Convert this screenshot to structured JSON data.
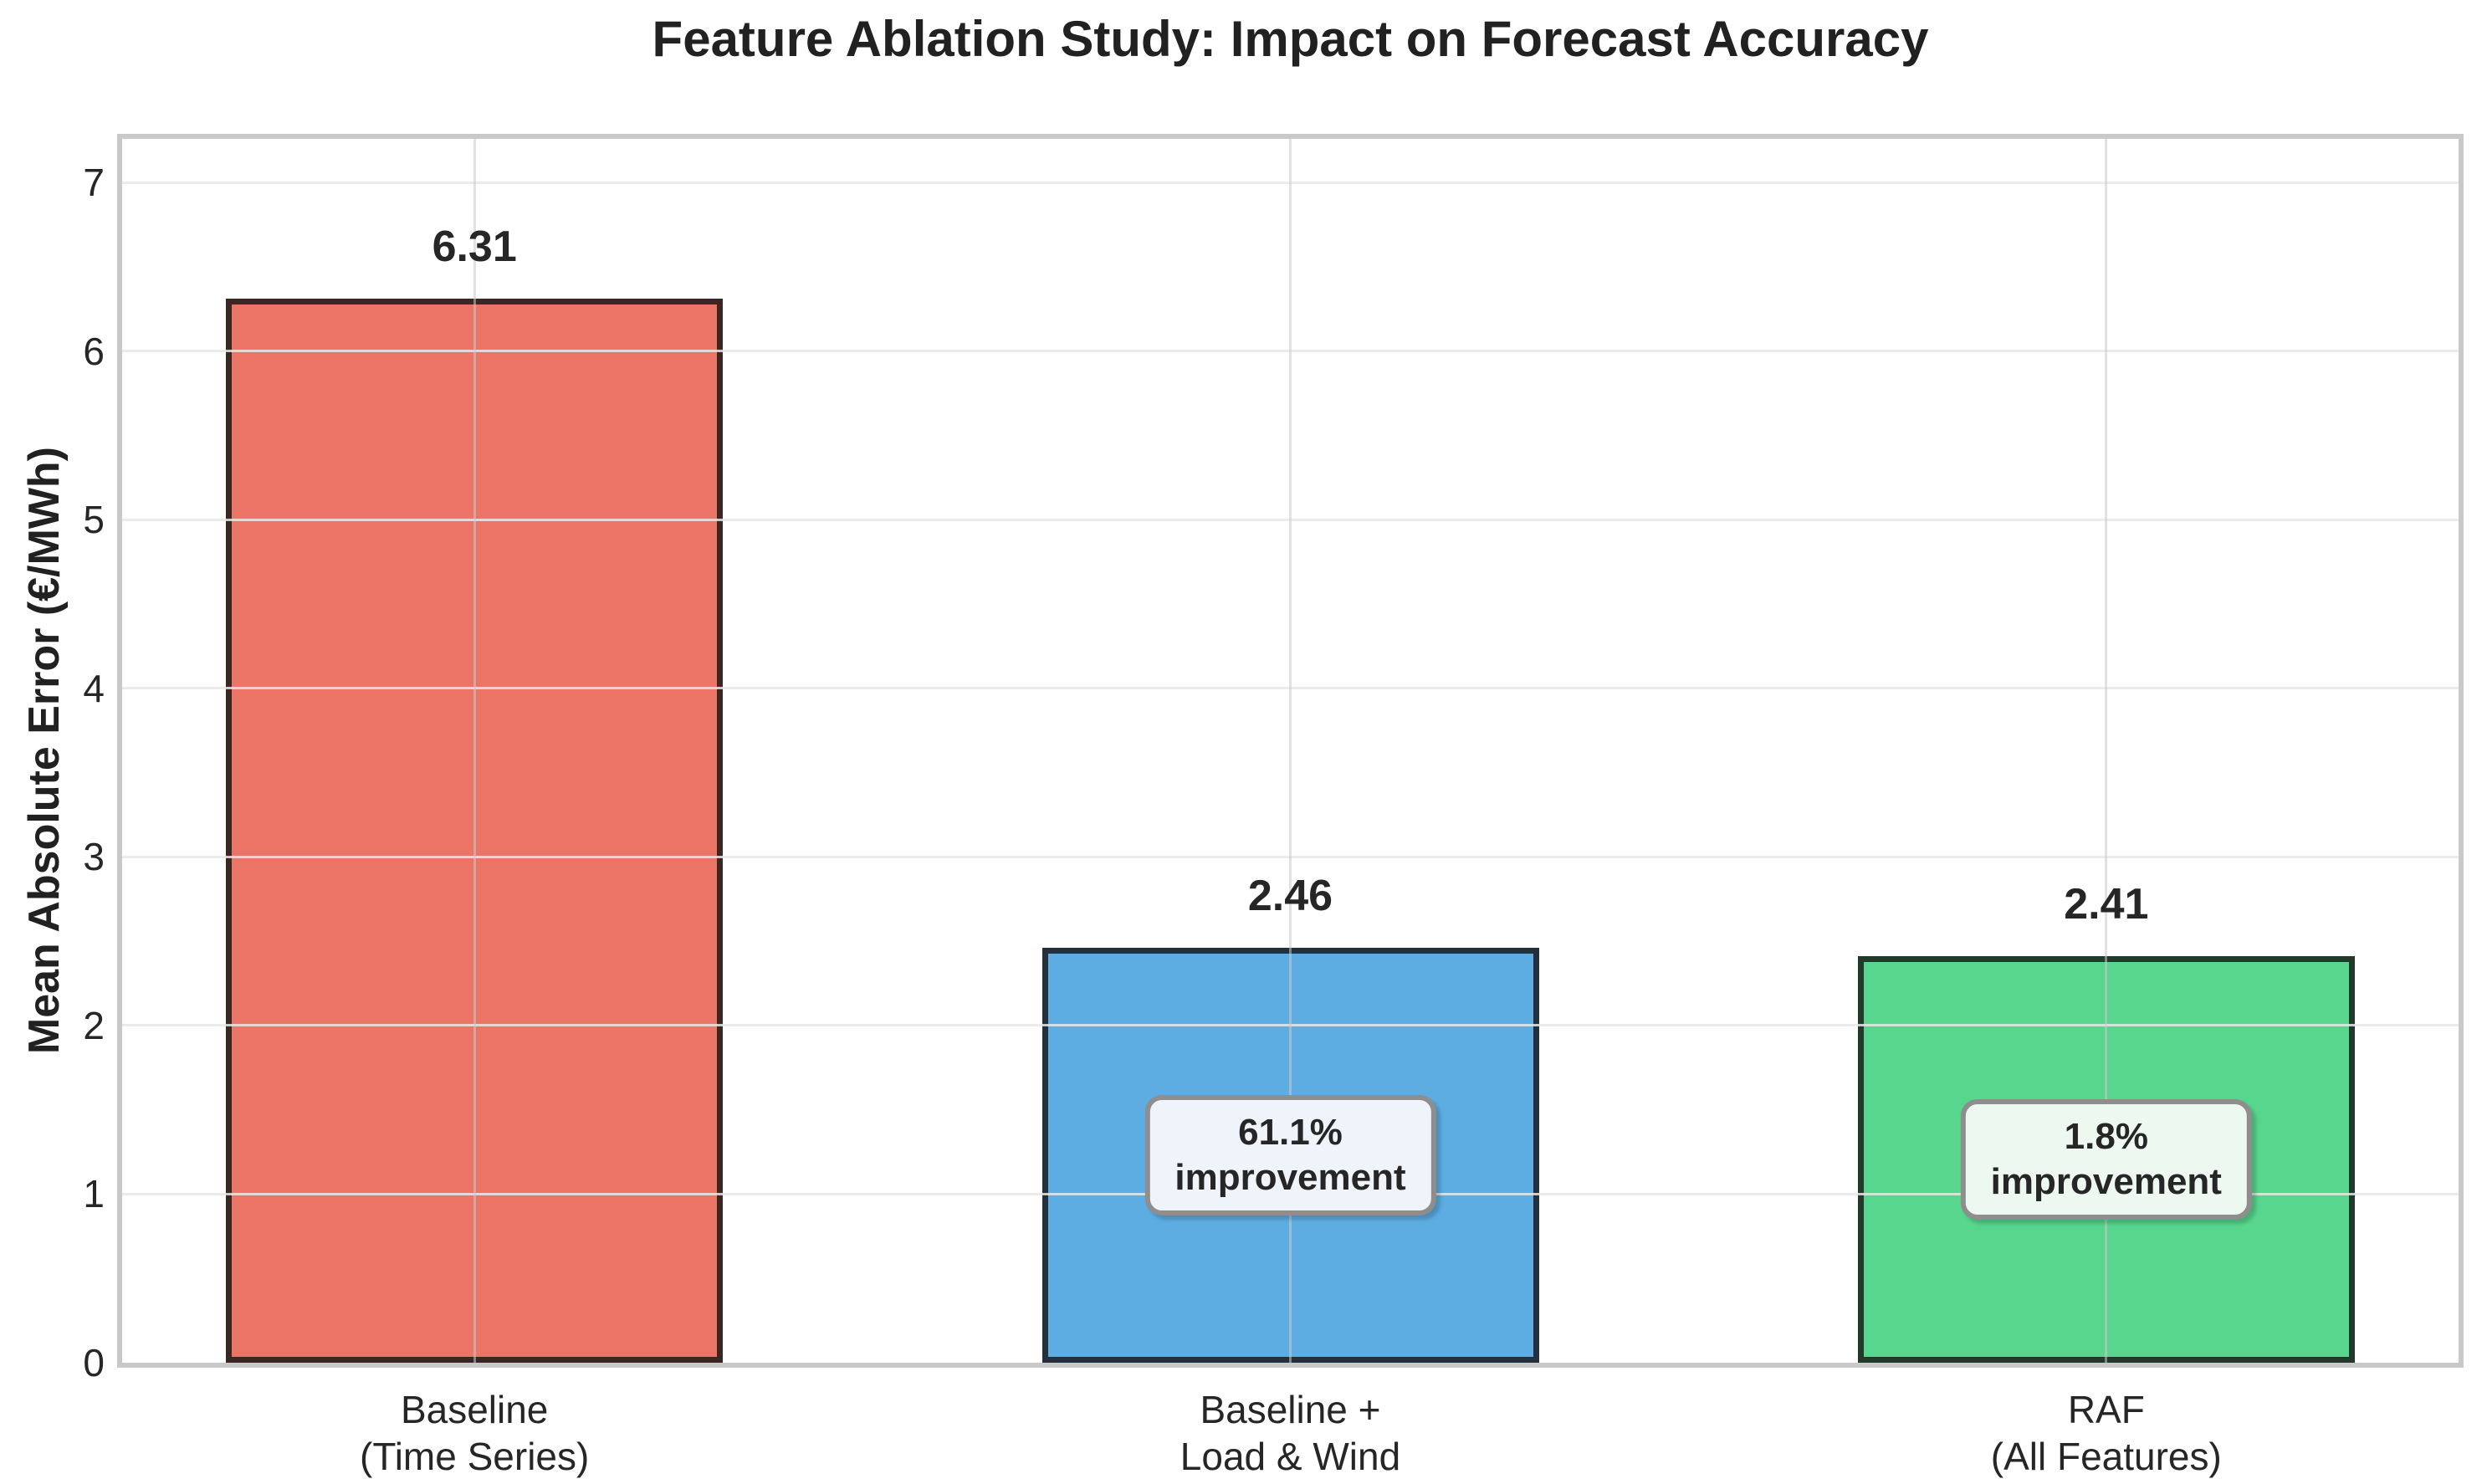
{
  "title": "Feature Ablation Study: Impact on Forecast Accuracy",
  "ylabel": "Mean Absolute Error (€/MWh)",
  "chart_data": {
    "type": "bar",
    "title": "Feature Ablation Study: Impact on Forecast Accuracy",
    "ylabel": "Mean Absolute Error (€/MWh)",
    "xlabel": "",
    "categories": [
      "Baseline\n(Time Series)",
      "Baseline +\nLoad & Wind",
      "RAF\n(All Features)"
    ],
    "values": [
      6.31,
      2.46,
      2.41
    ],
    "value_labels": [
      "6.31",
      "2.46",
      "2.41"
    ],
    "annotations": [
      null,
      "61.1%\nimprovement",
      "1.8%\nimprovement"
    ],
    "annotation_bg": [
      null,
      "#EFF4FB",
      "#EDF8F1"
    ],
    "bar_colors": [
      "#EB7467",
      "#5DADE2",
      "#58D68D"
    ],
    "bar_edge_colors": [
      "#3A2723",
      "#232F3A",
      "#22382A"
    ],
    "ylim": [
      0,
      7.26
    ],
    "yticks": [
      0,
      1,
      2,
      3,
      4,
      5,
      6,
      7
    ],
    "grid": true,
    "grid_above_bars": true,
    "legend": null
  },
  "colors": {
    "spine": "#c9c9c9",
    "text": "#262626",
    "title_text": "#212121",
    "annotation_border": "#8e8e8e"
  }
}
